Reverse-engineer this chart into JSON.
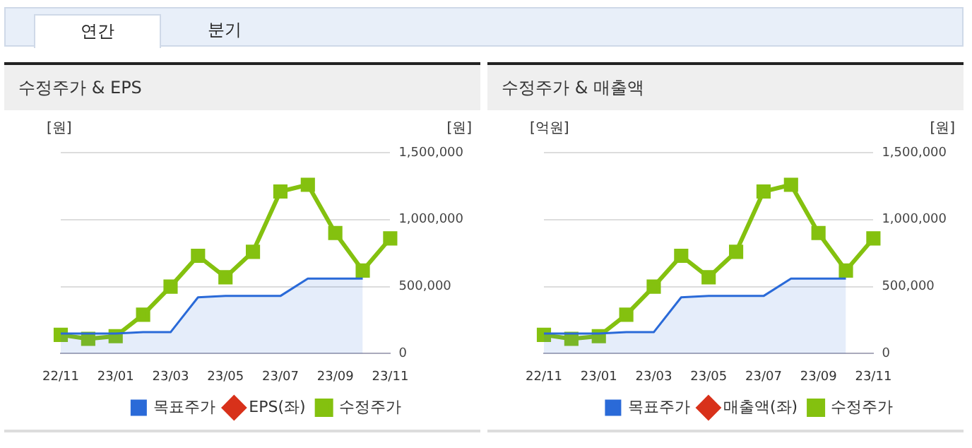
{
  "chart_data": [
    {
      "type": "line",
      "title": "수정주가 & EPS",
      "ylabel": "[원]",
      "y2label": "[원]",
      "annotations": [
        "연간",
        "분기"
      ],
      "categories": [
        "22/11",
        null,
        "23/01",
        null,
        "23/03",
        null,
        "23/05",
        null,
        "23/07",
        null,
        "23/09",
        null,
        "23/11"
      ],
      "series": [
        {
          "name": "목표주가",
          "type": "area",
          "color": "#2a6ad8",
          "axis": "y2",
          "marker": "none",
          "values": [
            150000,
            150000,
            150000,
            160000,
            160000,
            420000,
            430000,
            430000,
            430000,
            560000,
            560000,
            560000,
            null
          ]
        },
        {
          "name": "EPS(좌)",
          "color": "#d8311a",
          "axis": "y",
          "marker": "diamond",
          "values": [
            null,
            null,
            null,
            null,
            null,
            null,
            null,
            null,
            null,
            null,
            null,
            null,
            null
          ]
        },
        {
          "name": "수정주가",
          "color": "#84c10f",
          "axis": "y2",
          "marker": "square",
          "values": [
            140000,
            110000,
            130000,
            290000,
            500000,
            730000,
            570000,
            760000,
            1210000,
            1260000,
            900000,
            620000,
            860000
          ]
        }
      ],
      "y2lim": [
        0,
        1500000
      ],
      "y2ticks": [
        {
          "value": 0,
          "label": "0"
        },
        {
          "value": 500000,
          "label": "500,000"
        },
        {
          "value": 1000000,
          "label": "1,000,000"
        },
        {
          "value": 1500000,
          "label": "1,500,000"
        }
      ],
      "grid": "y",
      "legend": "bottom"
    },
    {
      "type": "line",
      "title": "수정주가 & 매출액",
      "ylabel": "[억원]",
      "y2label": "[원]",
      "categories": [
        "22/11",
        null,
        "23/01",
        null,
        "23/03",
        null,
        "23/05",
        null,
        "23/07",
        null,
        "23/09",
        null,
        "23/11"
      ],
      "series": [
        {
          "name": "목표주가",
          "type": "area",
          "color": "#2a6ad8",
          "axis": "y2",
          "marker": "none",
          "values": [
            150000,
            150000,
            150000,
            160000,
            160000,
            420000,
            430000,
            430000,
            430000,
            560000,
            560000,
            560000,
            null
          ]
        },
        {
          "name": "매출액(좌)",
          "color": "#d8311a",
          "axis": "y",
          "marker": "diamond",
          "values": [
            null,
            null,
            null,
            null,
            null,
            null,
            null,
            null,
            null,
            null,
            null,
            null,
            null
          ]
        },
        {
          "name": "수정주가",
          "color": "#84c10f",
          "axis": "y2",
          "marker": "square",
          "values": [
            140000,
            110000,
            130000,
            290000,
            500000,
            730000,
            570000,
            760000,
            1210000,
            1260000,
            900000,
            620000,
            860000
          ]
        }
      ],
      "y2lim": [
        0,
        1500000
      ],
      "y2ticks": [
        {
          "value": 0,
          "label": "0"
        },
        {
          "value": 500000,
          "label": "500,000"
        },
        {
          "value": 1000000,
          "label": "1,000,000"
        },
        {
          "value": 1500000,
          "label": "1,500,000"
        }
      ],
      "grid": "y",
      "legend": "bottom"
    }
  ]
}
